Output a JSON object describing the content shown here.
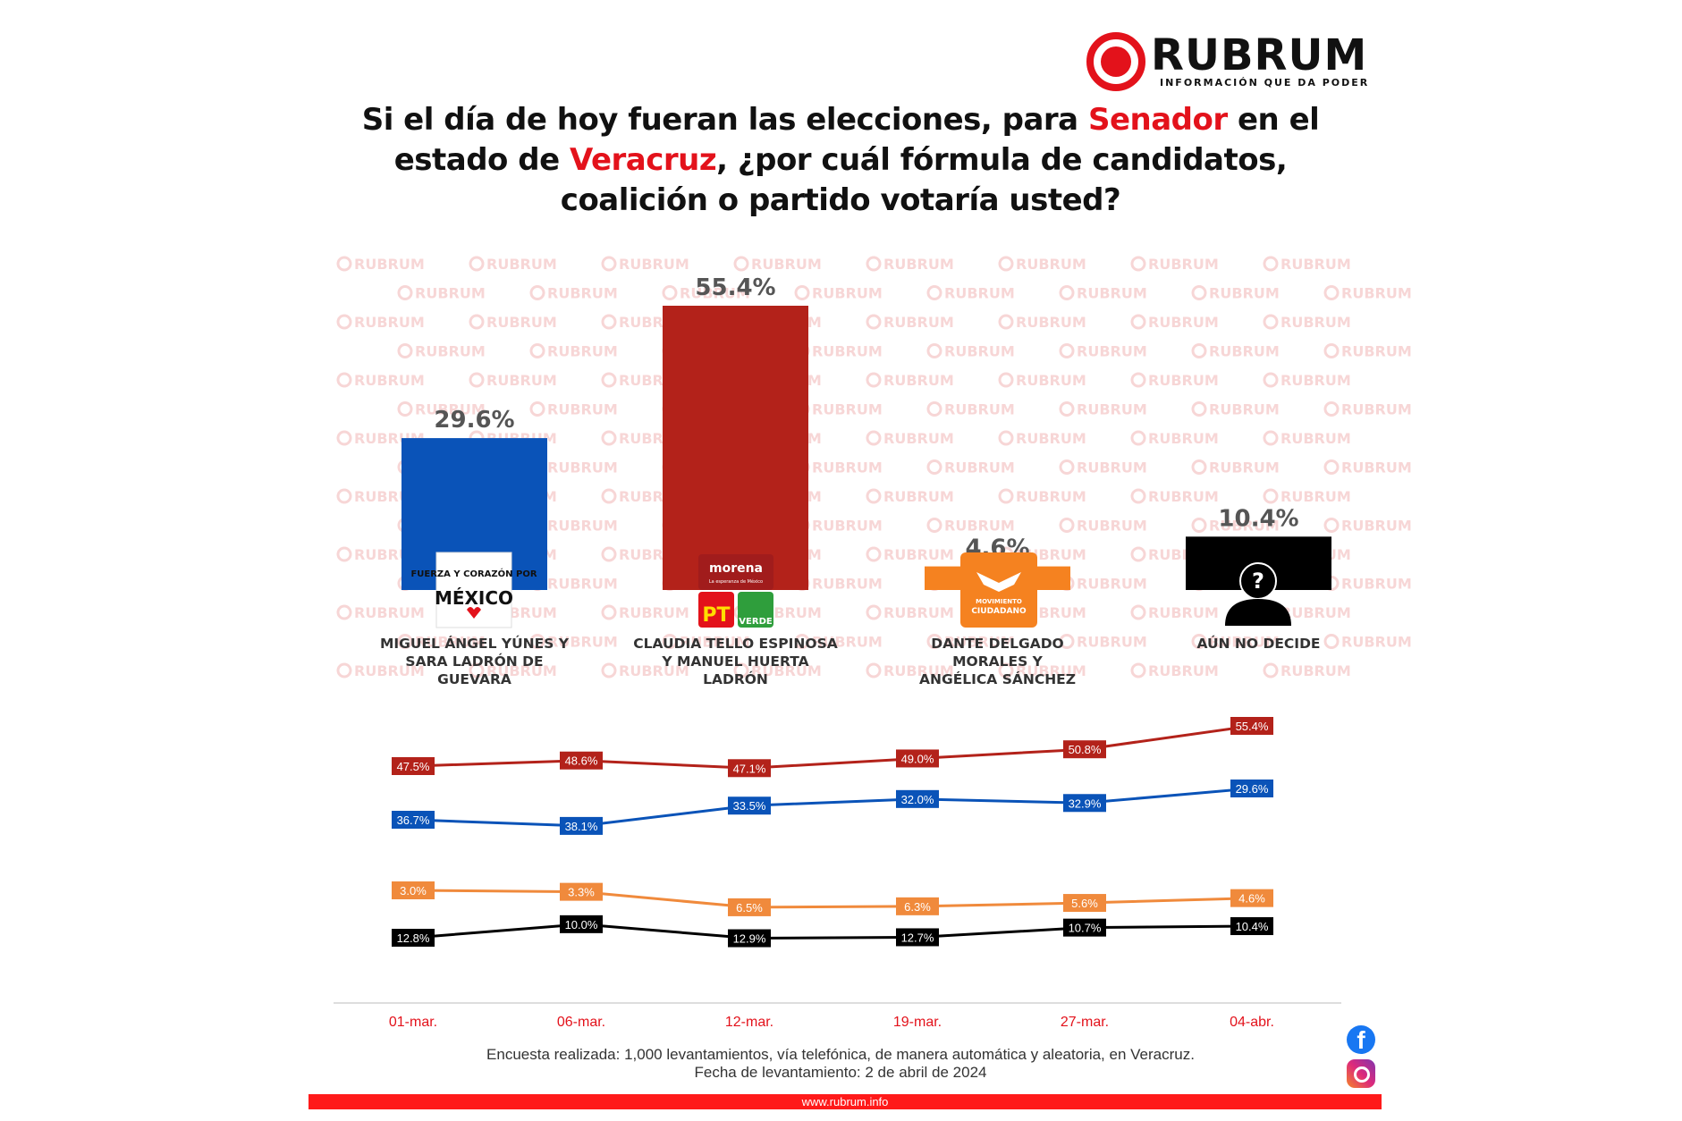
{
  "brand": {
    "name": "RUBRUM",
    "tagline": "INFORMACIÓN QUE DA PODER",
    "watermark": "RUBRUM",
    "website": "www.rubrum.info",
    "accent": "#e3121b"
  },
  "title": {
    "part1": "Si el día de hoy fueran las elecciones, para ",
    "highlight1": "Senador",
    "part2": " en el estado de ",
    "highlight2": "Veracruz",
    "part3": ", ¿por cuál fórmula de candidatos, coalición o partido votaría usted?"
  },
  "footer": {
    "method": "Encuesta realizada: 1,000 levantamientos, vía telefónica, de manera automática y aleatoria, en Veracruz.",
    "date": "Fecha de levantamiento: 2 de abril de 2024"
  },
  "social": {
    "facebook": "facebook-icon",
    "instagram": "instagram-icon"
  },
  "chart_data": [
    {
      "type": "bar",
      "categories": [
        "MIGUEL ÁNGEL YÚNES Y SARA LADRÓN DE GUEVARA",
        "CLAUDIA TELLO ESPINOSA Y MANUEL HUERTA LADRÓN",
        "DANTE DELGADO MORALES Y ANGÉLICA SÁNCHEZ",
        "AÚN NO DECIDE"
      ],
      "category_lines": [
        [
          "MIGUEL ÁNGEL YÚNES Y",
          "SARA LADRÓN DE",
          "GUEVARA"
        ],
        [
          "CLAUDIA TELLO ESPINOSA",
          "Y MANUEL HUERTA",
          "LADRÓN"
        ],
        [
          "DANTE DELGADO",
          "MORALES Y",
          "ANGÉLICA SÁNCHEZ"
        ],
        [
          "AÚN NO DECIDE"
        ]
      ],
      "values": [
        29.6,
        55.4,
        4.6,
        10.4
      ],
      "value_labels": [
        "29.6%",
        "55.4%",
        "4.6%",
        "10.4%"
      ],
      "colors": [
        "#0a53b8",
        "#b3221a",
        "#f58220",
        "#000000"
      ],
      "logos": [
        {
          "icon": "fuerza-y-corazon-por-mexico-logo",
          "text": [
            "FUERZA Y CORAZÓN POR",
            "MÉXICO"
          ]
        },
        {
          "icon": "morena-pt-verde-logo",
          "text": [
            "morena",
            "La esperanza de México",
            "PT",
            "VERDE"
          ]
        },
        {
          "icon": "movimiento-ciudadano-logo",
          "text": [
            "MOVIMIENTO",
            "CIUDADANO"
          ]
        },
        {
          "icon": "undecided-person-icon",
          "text": [
            "?"
          ]
        }
      ]
    },
    {
      "type": "line",
      "x": [
        "01-mar.",
        "06-mar.",
        "12-mar.",
        "19-mar.",
        "27-mar.",
        "04-abr."
      ],
      "series": [
        {
          "values": [
            47.5,
            48.6,
            47.1,
            49.0,
            50.8,
            55.4
          ],
          "labels": [
            "47.5%",
            "48.6%",
            "47.1%",
            "49.0%",
            "50.8%",
            "55.4%"
          ],
          "color": "#b3221a"
        },
        {
          "values": [
            36.7,
            38.1,
            33.5,
            32.0,
            32.9,
            29.6
          ],
          "labels": [
            "36.7%",
            "38.1%",
            "33.5%",
            "32.0%",
            "32.9%",
            "29.6%"
          ],
          "color": "#0a53b8"
        },
        {
          "values": [
            12.8,
            10.0,
            12.9,
            12.7,
            10.7,
            10.4
          ],
          "labels": [
            "12.8%",
            "10.0%",
            "12.9%",
            "12.7%",
            "10.7%",
            "10.4%"
          ],
          "color": "#000000"
        },
        {
          "values": [
            3.0,
            3.3,
            6.5,
            6.3,
            5.6,
            4.6
          ],
          "labels": [
            "3.0%",
            "3.3%",
            "6.5%",
            "6.3%",
            "5.6%",
            "4.6%"
          ],
          "color": "#f08a3c"
        }
      ],
      "xlabel_color": "#e3121b"
    }
  ]
}
